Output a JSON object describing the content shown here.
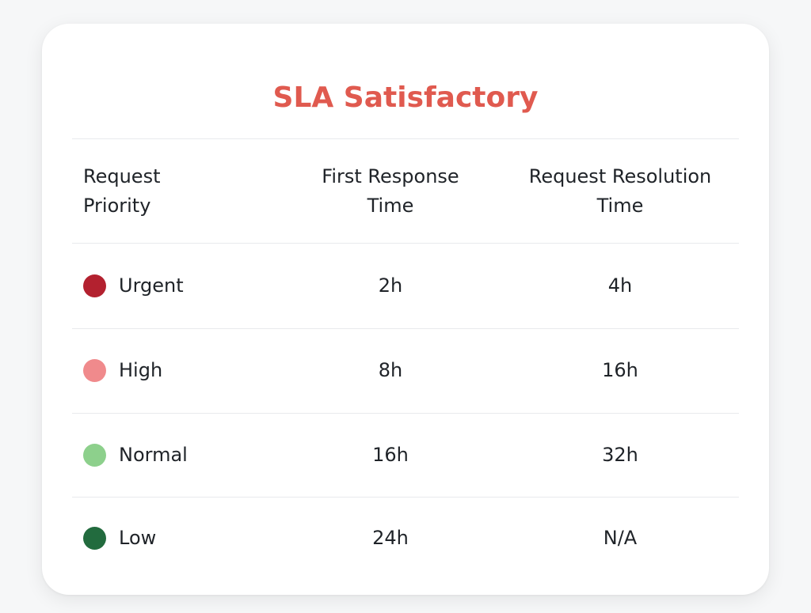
{
  "title": "SLA Satisfactory",
  "colors": {
    "title": "#e05a4f"
  },
  "table": {
    "headers": {
      "priority_line1": "Request",
      "priority_line2": "Priority",
      "first_response_line1": "First Response",
      "first_response_line2": "Time",
      "resolution_line1": "Request Resolution",
      "resolution_line2": "Time"
    },
    "rows": [
      {
        "priority": "Urgent",
        "color": "#b3212f",
        "first_response": "2h",
        "resolution": "4h"
      },
      {
        "priority": "High",
        "color": "#f08a8c",
        "first_response": "8h",
        "resolution": "16h"
      },
      {
        "priority": "Normal",
        "color": "#8dd08c",
        "first_response": "16h",
        "resolution": "32h"
      },
      {
        "priority": "Low",
        "color": "#226b3e",
        "first_response": "24h",
        "resolution": "N/A"
      }
    ]
  }
}
